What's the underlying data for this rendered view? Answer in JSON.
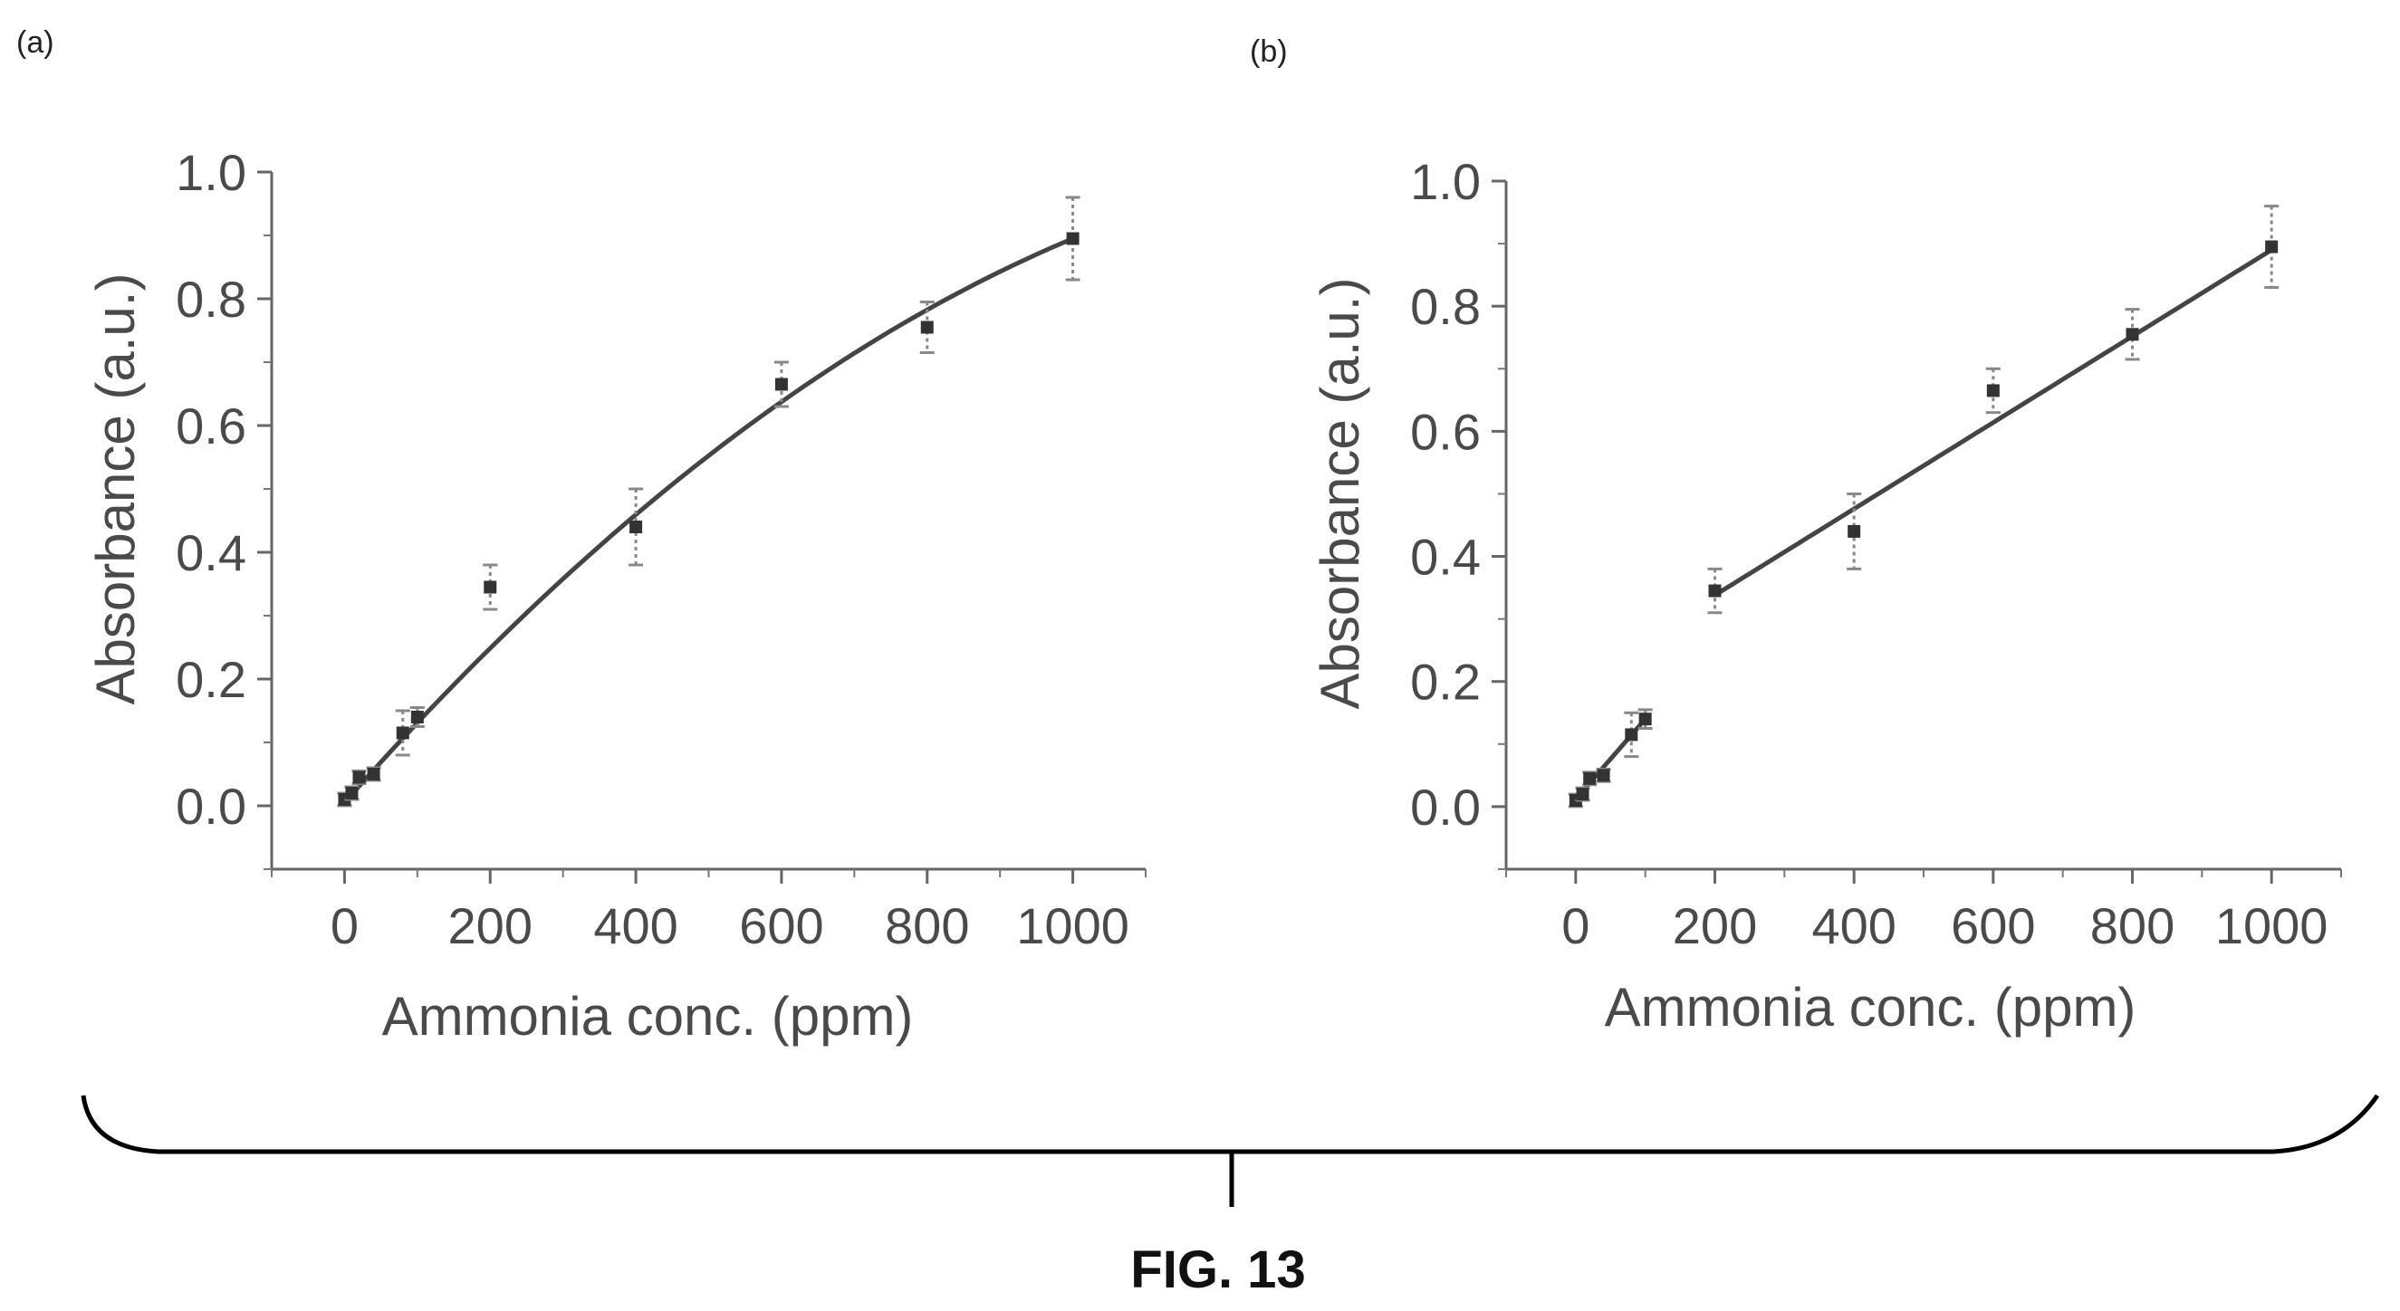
{
  "figure_label": "FIG. 13",
  "chart_data": [
    {
      "panel": "(a)",
      "type": "scatter",
      "title": "",
      "xlabel": "Ammonia conc. (ppm)",
      "ylabel": "Absorbance (a.u.)",
      "xlim": [
        -100,
        1100
      ],
      "ylim": [
        -0.1,
        1.0
      ],
      "xticks": [
        0,
        200,
        400,
        600,
        800,
        1000
      ],
      "yticks": [
        0.0,
        0.2,
        0.4,
        0.6,
        0.8,
        1.0
      ],
      "xtick_labels": [
        "0",
        "200",
        "400",
        "600",
        "800",
        "1000"
      ],
      "ytick_labels": [
        "0.0",
        "0.2",
        "0.4",
        "0.6",
        "0.8",
        "1.0"
      ],
      "grid": false,
      "series": [
        {
          "x": [
            0,
            10,
            20,
            40,
            80,
            100,
            200,
            400,
            600,
            800,
            1000
          ],
          "y": [
            0.01,
            0.02,
            0.045,
            0.05,
            0.115,
            0.14,
            0.345,
            0.44,
            0.665,
            0.755,
            0.895
          ],
          "err": [
            0.01,
            0.01,
            0.01,
            0.01,
            0.035,
            0.015,
            0.035,
            0.06,
            0.035,
            0.04,
            0.065
          ]
        }
      ],
      "fits": [
        {
          "kind": "quadratic",
          "coef": [
            0.005,
            0.0013,
            -4.1e-07
          ],
          "x_range": [
            0,
            1000
          ]
        }
      ]
    },
    {
      "panel": "(b)",
      "type": "scatter",
      "title": "",
      "xlabel": "Ammonia conc. (ppm)",
      "ylabel": "Absorbance (a.u.)",
      "xlim": [
        -100,
        1100
      ],
      "ylim": [
        -0.1,
        1.0
      ],
      "xticks": [
        0,
        200,
        400,
        600,
        800,
        1000
      ],
      "yticks": [
        0.0,
        0.2,
        0.4,
        0.6,
        0.8,
        1.0
      ],
      "xtick_labels": [
        "0",
        "200",
        "400",
        "600",
        "800",
        "1000"
      ],
      "ytick_labels": [
        "0.0",
        "0.2",
        "0.4",
        "0.6",
        "0.8",
        "1.0"
      ],
      "grid": false,
      "series": [
        {
          "x": [
            0,
            10,
            20,
            40,
            80,
            100,
            200,
            400,
            600,
            800,
            1000
          ],
          "y": [
            0.01,
            0.02,
            0.045,
            0.05,
            0.115,
            0.14,
            0.345,
            0.44,
            0.665,
            0.755,
            0.895
          ],
          "err": [
            0.01,
            0.01,
            0.01,
            0.01,
            0.035,
            0.015,
            0.035,
            0.06,
            0.035,
            0.04,
            0.065
          ]
        }
      ],
      "fits": [
        {
          "kind": "linear",
          "coef": [
            0.012,
            0.00128
          ],
          "x_range": [
            0,
            100
          ]
        },
        {
          "kind": "linear",
          "coef": [
            0.2,
            0.00069
          ],
          "x_range": [
            200,
            1000
          ]
        }
      ]
    }
  ]
}
